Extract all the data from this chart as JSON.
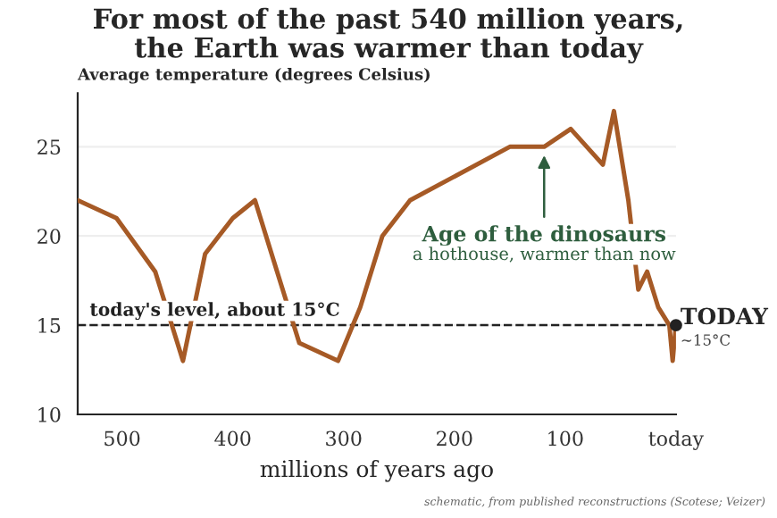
{
  "chart_data": {
    "type": "line",
    "title": "For most of the past 540 million years,\nthe Earth was warmer than today",
    "ylabel": "Average temperature (degrees Celsius)",
    "xlabel": "millions of years ago",
    "series": [
      {
        "color": "#a65a26",
        "x": [
          540,
          505,
          470,
          445,
          425,
          400,
          380,
          360,
          340,
          305,
          285,
          265,
          240,
          150,
          119,
          95,
          66,
          56,
          43,
          34,
          26,
          16,
          6,
          3,
          0
        ],
        "values": [
          22,
          21,
          18,
          13,
          19,
          21,
          22,
          18,
          14,
          13,
          16,
          20,
          22,
          25,
          25,
          26,
          24,
          27,
          22,
          17,
          18,
          16,
          15,
          13,
          15
        ]
      },
      {
        "type": "scatter",
        "color": "#222222",
        "x": [
          0
        ],
        "values": [
          15
        ]
      }
    ],
    "xlim": [
      540,
      0
    ],
    "ylim": [
      10,
      28
    ],
    "xticks": [
      500,
      400,
      300,
      200,
      100,
      {
        "value": 0,
        "label": "today"
      }
    ],
    "yticks": [
      10,
      15,
      20,
      25
    ],
    "grid": "y",
    "ref_lines": [
      {
        "axis": "y",
        "value": 15,
        "label": "today's level, about 15°C",
        "color": "#222222",
        "line_style": "dashed"
      }
    ],
    "annotations": [
      {
        "text": "Age of the dinosaurs",
        "x": 119,
        "y": 25
      },
      "a hothouse, warmer than now",
      {
        "text": "TODAY",
        "x": 0,
        "y": 15
      },
      "~15°C",
      "schematic, from published reconstructions (Scotese; Veizer)"
    ]
  }
}
